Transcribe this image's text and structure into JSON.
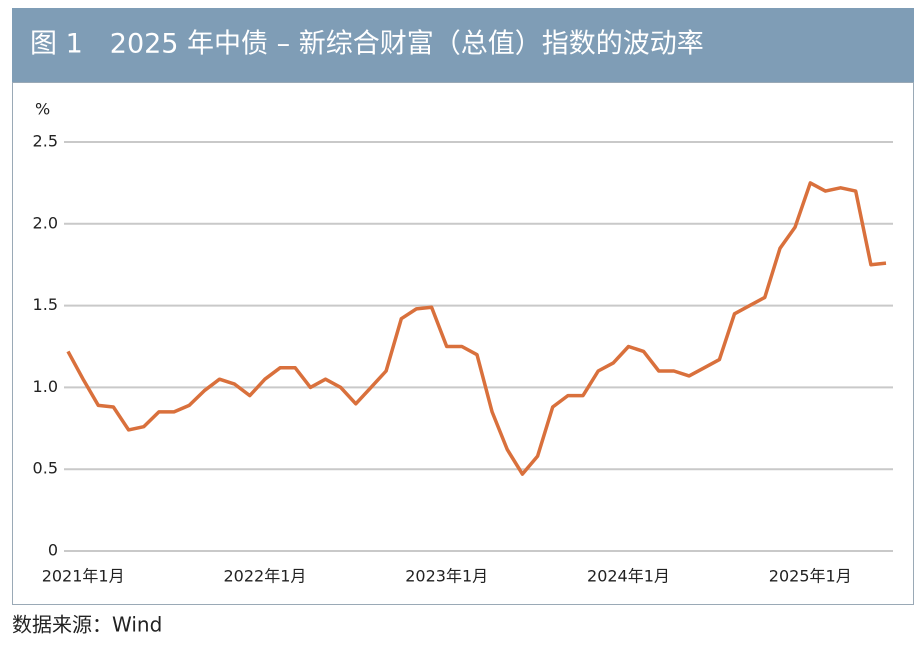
{
  "chart_data": {
    "type": "line",
    "title": "图 1　2025 年中债 – 新综合财富（总值）指数的波动率",
    "y_label": "%",
    "source": "数据来源：Wind",
    "x": [
      "2020-12",
      "2021-01",
      "2021-02",
      "2021-03",
      "2021-04",
      "2021-05",
      "2021-06",
      "2021-07",
      "2021-08",
      "2021-09",
      "2021-10",
      "2021-11",
      "2021-12",
      "2022-01",
      "2022-02",
      "2022-03",
      "2022-04",
      "2022-05",
      "2022-06",
      "2022-07",
      "2022-08",
      "2022-09",
      "2022-10",
      "2022-11",
      "2022-12",
      "2023-01",
      "2023-02",
      "2023-03",
      "2023-04",
      "2023-05",
      "2023-06",
      "2023-07",
      "2023-08",
      "2023-09",
      "2023-10",
      "2023-11",
      "2023-12",
      "2024-01",
      "2024-02",
      "2024-03",
      "2024-04",
      "2024-05",
      "2024-06",
      "2024-07",
      "2024-08",
      "2024-09",
      "2024-10",
      "2024-11",
      "2024-12",
      "2025-01",
      "2025-02",
      "2025-03",
      "2025-04",
      "2025-05",
      "2025-06"
    ],
    "series": [
      {
        "name": "波动率",
        "color": "#d9703c",
        "values": [
          1.22,
          1.05,
          0.89,
          0.88,
          0.74,
          0.76,
          0.85,
          0.85,
          0.89,
          0.98,
          1.05,
          1.02,
          0.95,
          1.05,
          1.12,
          1.12,
          1.0,
          1.05,
          1.0,
          0.9,
          1.0,
          1.1,
          1.42,
          1.48,
          1.49,
          1.25,
          1.25,
          1.2,
          0.85,
          0.62,
          0.47,
          0.58,
          0.88,
          0.95,
          0.95,
          1.1,
          1.15,
          1.25,
          1.22,
          1.1,
          1.1,
          1.07,
          1.12,
          1.17,
          1.45,
          1.5,
          1.55,
          1.85,
          1.98,
          2.25,
          2.2,
          2.22,
          2.2,
          1.75,
          1.76
        ]
      }
    ],
    "xlim": [
      "2020-12",
      "2025-06"
    ],
    "xticks": [
      {
        "value": "2021-01",
        "label": "2021年1月"
      },
      {
        "value": "2022-01",
        "label": "2022年1月"
      },
      {
        "value": "2023-01",
        "label": "2023年1月"
      },
      {
        "value": "2024-01",
        "label": "2024年1月"
      },
      {
        "value": "2025-01",
        "label": "2025年1月"
      }
    ],
    "ylim": [
      0,
      2.5
    ],
    "yticks": [
      0,
      0.5,
      {
        "value": 1,
        "label": "1.0"
      },
      1.5,
      {
        "value": 2,
        "label": "2.0"
      },
      2.5
    ],
    "grid": true
  }
}
